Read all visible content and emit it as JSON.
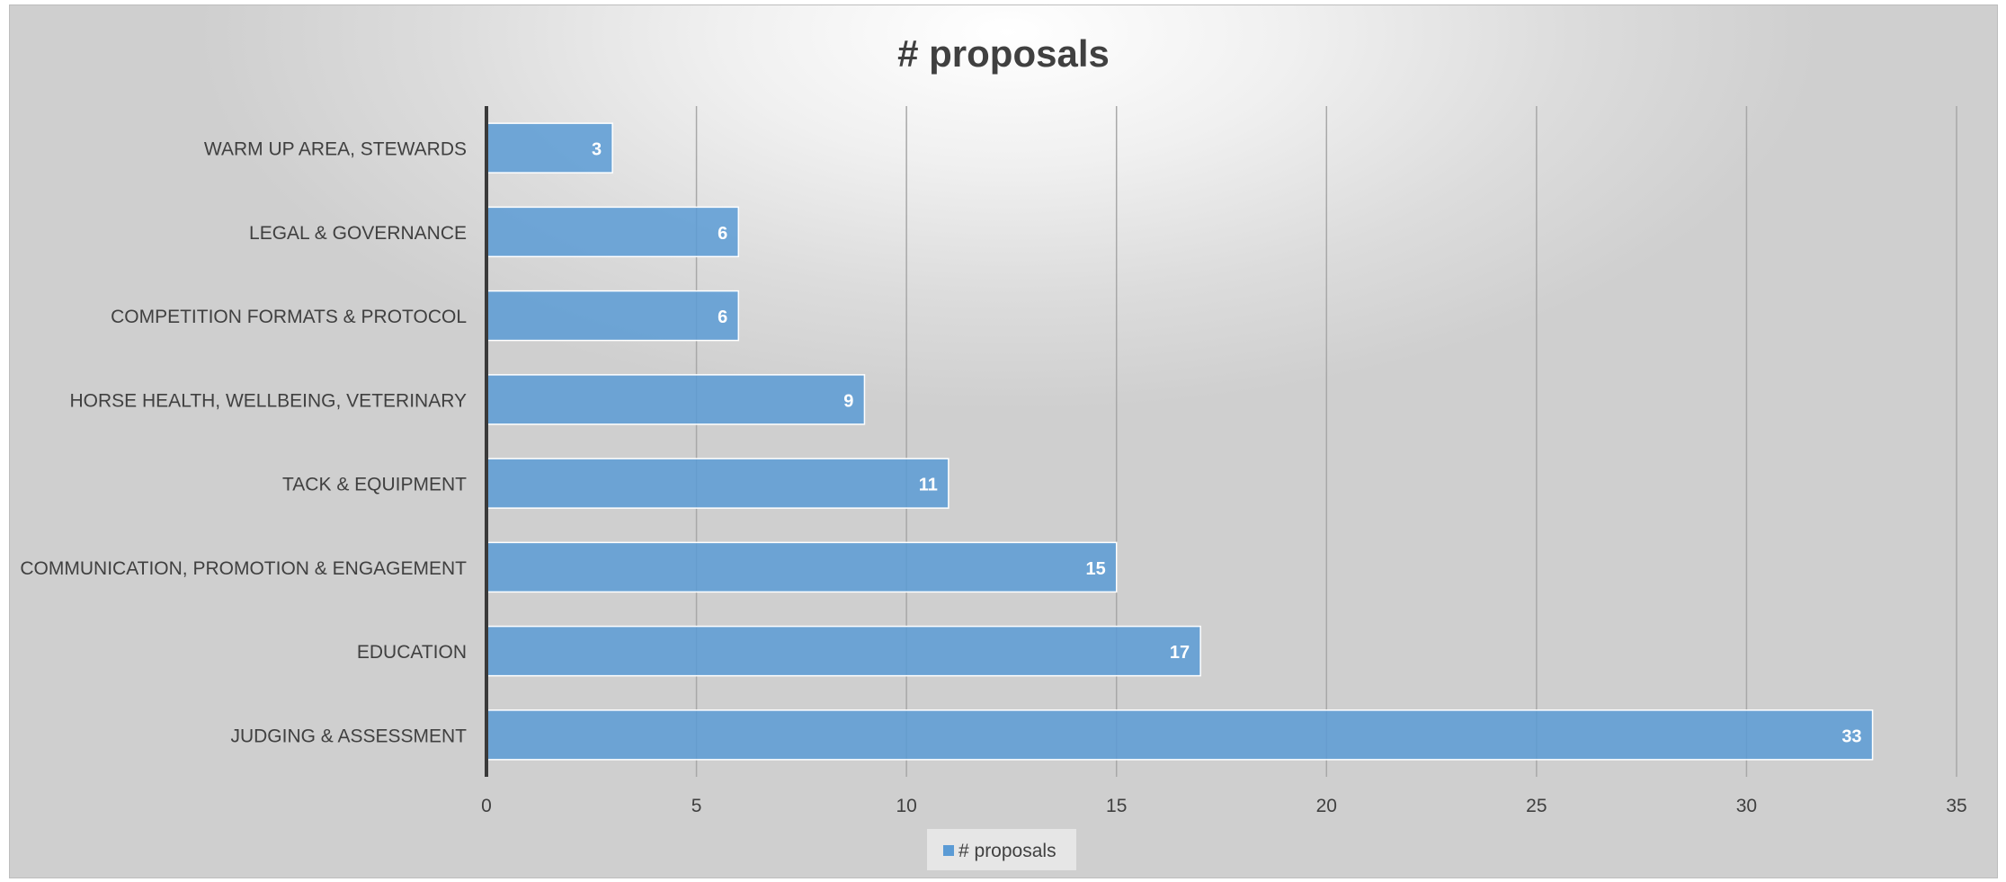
{
  "chart_data": {
    "type": "bar",
    "orientation": "horizontal",
    "title": "# proposals",
    "categories": [
      "WARM UP AREA, STEWARDS",
      "LEGAL & GOVERNANCE",
      "COMPETITION FORMATS & PROTOCOL",
      "HORSE HEALTH, WELLBEING, VETERINARY",
      "TACK & EQUIPMENT",
      "COMMUNICATION, PROMOTION & ENGAGEMENT",
      "EDUCATION",
      "JUDGING & ASSESSMENT"
    ],
    "series": [
      {
        "name": "# proposals",
        "values": [
          3,
          6,
          6,
          9,
          11,
          15,
          17,
          33
        ],
        "color": "#5b9bd5"
      }
    ],
    "xlim": [
      0,
      35
    ],
    "x_ticks": [
      "0",
      "5",
      "10",
      "15",
      "20",
      "25",
      "30",
      "35"
    ],
    "data_labels": [
      "3",
      "6",
      "6",
      "9",
      "11",
      "15",
      "17",
      "33"
    ],
    "xlabel": "",
    "ylabel": "",
    "grid": "vertical",
    "legend": "bottom"
  }
}
